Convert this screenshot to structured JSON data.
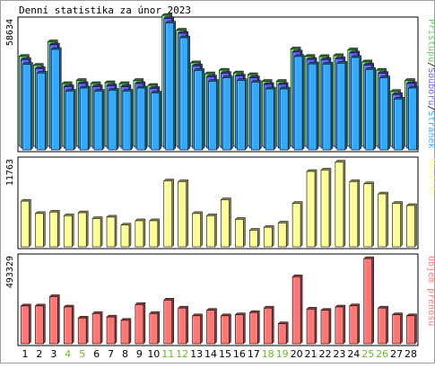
{
  "title": "Denní statistika za únor 2023",
  "colors": {
    "hits": "#66cc66",
    "files": "#6666ff",
    "pages": "#33aaff",
    "visits": "#ffff99",
    "kbytes": "#ff7777",
    "weekend_label": "#66bb22",
    "weekday_label": "#000000"
  },
  "days": [
    "1",
    "2",
    "3",
    "4",
    "5",
    "6",
    "7",
    "8",
    "9",
    "10",
    "11",
    "12",
    "13",
    "14",
    "15",
    "16",
    "17",
    "18",
    "19",
    "20",
    "21",
    "22",
    "23",
    "24",
    "25",
    "26",
    "27",
    "28"
  ],
  "weekend_days": [
    "4",
    "5",
    "11",
    "12",
    "18",
    "19",
    "25",
    "26"
  ],
  "chart_data": [
    {
      "type": "bar",
      "ymax_label": "58634",
      "ylim": [
        0,
        58634
      ],
      "legend": [
        {
          "key": "hits",
          "text": "Přístupů"
        },
        {
          "key": "files",
          "text": "Souborů"
        },
        {
          "key": "pages",
          "text": "Stránek"
        }
      ],
      "series": [
        {
          "key": "hits",
          "values": [
            40300,
            36300,
            46800,
            28100,
            29500,
            28100,
            28500,
            28100,
            29500,
            27300,
            58600,
            52000,
            37400,
            32500,
            34100,
            32900,
            32100,
            29100,
            29100,
            43600,
            40300,
            40200,
            40600,
            43200,
            37800,
            34100,
            24600,
            29500
          ]
        },
        {
          "key": "files",
          "values": [
            39600,
            35600,
            46200,
            27500,
            28900,
            27500,
            27900,
            27500,
            28900,
            26700,
            58000,
            51400,
            36800,
            31900,
            33500,
            32300,
            31500,
            28500,
            28500,
            43000,
            39700,
            39600,
            40000,
            42600,
            37200,
            33500,
            24000,
            28900
          ]
        },
        {
          "key": "pages",
          "values": [
            38300,
            34400,
            45000,
            26300,
            27700,
            26300,
            26700,
            26300,
            27700,
            25500,
            56800,
            50200,
            35600,
            30700,
            32300,
            31100,
            30300,
            27300,
            27300,
            41800,
            38500,
            38400,
            38800,
            41400,
            36000,
            32300,
            22800,
            27700
          ]
        }
      ]
    },
    {
      "type": "bar",
      "ymax_label": "11763",
      "ylim": [
        0,
        11763
      ],
      "legend": [
        {
          "key": "visits",
          "text": "Návštěv"
        }
      ],
      "series": [
        {
          "key": "visits",
          "values": [
            6300,
            4600,
            4800,
            4300,
            4700,
            3900,
            4100,
            3000,
            3600,
            3600,
            9100,
            9000,
            4600,
            4300,
            6500,
            3800,
            2300,
            2700,
            3300,
            6000,
            10400,
            10600,
            11700,
            9000,
            8700,
            7300,
            6000,
            5700
          ]
        }
      ]
    },
    {
      "type": "bar",
      "ymax_label": "493329",
      "ylim": [
        0,
        493329
      ],
      "legend": [
        {
          "key": "kbytes",
          "text": "Objem přenosu"
        }
      ],
      "series": [
        {
          "key": "kbytes",
          "values": [
            219000,
            219000,
            273000,
            213000,
            149000,
            175000,
            155000,
            136000,
            227000,
            175000,
            253000,
            207000,
            162000,
            194000,
            162000,
            168000,
            181000,
            207000,
            116000,
            388000,
            201000,
            194000,
            213000,
            220000,
            493000,
            207000,
            168000,
            162000
          ]
        }
      ]
    }
  ]
}
